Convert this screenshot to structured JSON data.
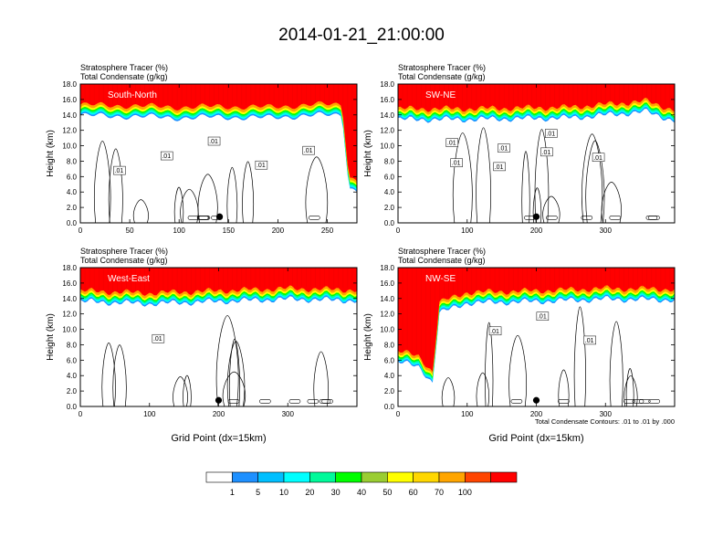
{
  "figure_title": "2014-01-21_21:00:00",
  "subtitle_line1": "Stratosphere Tracer   (%)",
  "subtitle_line2": "Total Condensate   (g/kg)",
  "contour_note": "Total Condensate Contours: .01 to .01 by .000",
  "colorbar": {
    "colors": [
      "#ffffff",
      "#1e90ff",
      "#00bfff",
      "#00ffff",
      "#00fa9a",
      "#00ff00",
      "#9acd32",
      "#ffff00",
      "#ffd700",
      "#ffa500",
      "#ff4500",
      "#ff0000"
    ],
    "labels": [
      "1",
      "5",
      "10",
      "20",
      "30",
      "40",
      "50",
      "60",
      "70",
      "100"
    ]
  },
  "chart_data": [
    {
      "type": "heatmap",
      "panel_label": "South-North",
      "title": "Stratosphere Tracer   (%) / Total Condensate   (g/kg)",
      "ylabel": "Height (km)",
      "xlabel": "",
      "xlim": [
        0,
        280
      ],
      "ylim": [
        0,
        18
      ],
      "xticks": [
        "0",
        "50",
        "100",
        "150",
        "200",
        "250"
      ],
      "yticks": [
        "0.0",
        "2.0",
        "4.0",
        "6.0",
        "8.0",
        "10.0",
        "12.0",
        "14.0",
        "16.0",
        "18.0"
      ],
      "contour_labels": [
        ".01",
        ".01",
        ".01",
        ".01",
        ".01"
      ],
      "marker_x": 141,
      "tracer_top_km": [
        [
          0,
          15.3
        ],
        [
          50,
          15.2
        ],
        [
          100,
          15.0
        ],
        [
          140,
          15.1
        ],
        [
          190,
          15.0
        ],
        [
          230,
          15.3
        ],
        [
          265,
          15.4
        ],
        [
          272,
          6
        ],
        [
          280,
          5.5
        ]
      ]
    },
    {
      "type": "heatmap",
      "panel_label": "SW-NE",
      "title": "Stratosphere Tracer   (%) / Total Condensate   (g/kg)",
      "ylabel": "Height (km)",
      "xlabel": "",
      "xlim": [
        0,
        400
      ],
      "ylim": [
        0,
        18
      ],
      "xticks": [
        "0",
        "100",
        "200",
        "300"
      ],
      "yticks": [
        "0.0",
        "2.0",
        "4.0",
        "6.0",
        "8.0",
        "10.0",
        "12.0",
        "14.0",
        "16.0",
        "18.0"
      ],
      "contour_labels": [
        ".01",
        ".01",
        ".01",
        ".01",
        ".01",
        ".01",
        ".01"
      ],
      "marker_x": 200,
      "tracer_top_km": [
        [
          0,
          14.8
        ],
        [
          100,
          14.8
        ],
        [
          250,
          15.0
        ],
        [
          360,
          15.8
        ],
        [
          400,
          14.6
        ]
      ]
    },
    {
      "type": "heatmap",
      "panel_label": "West-East",
      "title": "Stratosphere Tracer   (%) / Total Condensate   (g/kg)",
      "ylabel": "Height (km)",
      "xlabel": "Grid Point (dx=15km)",
      "xlim": [
        0,
        400
      ],
      "ylim": [
        0,
        18
      ],
      "xticks": [
        "0",
        "100",
        "200",
        "300"
      ],
      "yticks": [
        "0.0",
        "2.0",
        "4.0",
        "6.0",
        "8.0",
        "10.0",
        "12.0",
        "14.0",
        "16.0",
        "18.0"
      ],
      "contour_labels": [
        ".01"
      ],
      "marker_x": 200,
      "tracer_top_km": [
        [
          0,
          15.0
        ],
        [
          100,
          14.7
        ],
        [
          200,
          15.0
        ],
        [
          300,
          15.3
        ],
        [
          400,
          15.1
        ]
      ]
    },
    {
      "type": "heatmap",
      "panel_label": "NW-SE",
      "title": "Stratosphere Tracer   (%) / Total Condensate   (g/kg)",
      "ylabel": "Height (km)",
      "xlabel": "Grid Point (dx=15km)",
      "xlim": [
        0,
        400
      ],
      "ylim": [
        0,
        18
      ],
      "xticks": [
        "0",
        "100",
        "200",
        "300"
      ],
      "yticks": [
        "0.0",
        "2.0",
        "4.0",
        "6.0",
        "8.0",
        "10.0",
        "12.0",
        "14.0",
        "16.0",
        "18.0"
      ],
      "contour_labels": [
        ".01",
        ".01",
        ".01"
      ],
      "marker_x": 200,
      "tracer_top_km": [
        [
          0,
          7.2
        ],
        [
          30,
          6.5
        ],
        [
          50,
          4.5
        ],
        [
          60,
          13.5
        ],
        [
          100,
          14.8
        ],
        [
          200,
          15.0
        ],
        [
          300,
          15.3
        ],
        [
          400,
          15.2
        ]
      ]
    }
  ]
}
